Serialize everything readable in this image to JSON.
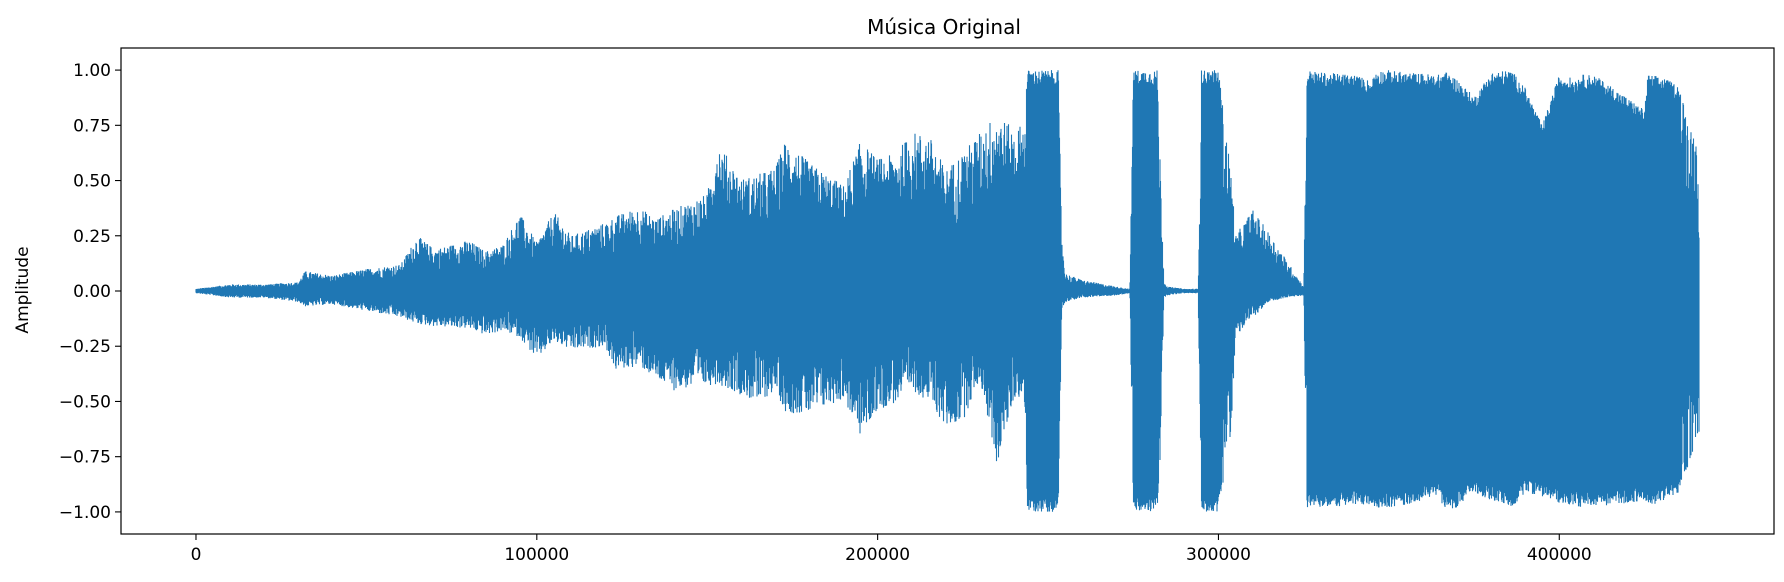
{
  "chart_data": {
    "type": "line",
    "title": "Música Original",
    "xlabel": "",
    "ylabel": "Amplitude",
    "xlim": [
      -22000,
      463000
    ],
    "ylim": [
      -1.1,
      1.1
    ],
    "x_ticks": [
      0,
      100000,
      200000,
      300000,
      400000
    ],
    "x_tick_labels": [
      "0",
      "100000",
      "200000",
      "300000",
      "400000"
    ],
    "y_ticks": [
      1.0,
      0.75,
      0.5,
      0.25,
      0.0,
      -0.25,
      -0.5,
      -0.75,
      -1.0
    ],
    "y_tick_labels": [
      "1.00",
      "0.75",
      "0.50",
      "0.25",
      "0.00",
      "−0.25",
      "−0.50",
      "−0.75",
      "−1.00"
    ],
    "grid": false,
    "legend": "none",
    "series": [
      {
        "name": "waveform",
        "color": "#1f77b4",
        "sample_count": 441000,
        "envelope": {
          "x": [
            0,
            10000,
            20000,
            30000,
            32000,
            40000,
            50000,
            60000,
            65000,
            70000,
            80000,
            85000,
            90000,
            95000,
            100000,
            105000,
            110000,
            120000,
            123000,
            130000,
            135000,
            140000,
            150000,
            153000,
            160000,
            165000,
            170000,
            173000,
            180000,
            190000,
            195000,
            200000,
            205000,
            210000,
            215000,
            220000,
            225000,
            230000,
            235000,
            240000,
            243000,
            244000,
            250000,
            253000,
            254000,
            255000,
            260000,
            270000,
            274000,
            275000,
            280000,
            282000,
            283000,
            284000,
            285000,
            290000,
            294000,
            295000,
            300000,
            304000,
            305000,
            310000,
            315000,
            320000,
            325000,
            326000,
            330000,
            340000,
            345000,
            346000,
            350000,
            355000,
            365000,
            366000,
            370000,
            375000,
            380000,
            385000,
            386000,
            390000,
            395000,
            400000,
            405000,
            406000,
            410000,
            415000,
            425000,
            426000,
            430000,
            435000,
            440000,
            441000
          ],
          "upper": [
            0.01,
            0.03,
            0.03,
            0.04,
            0.09,
            0.07,
            0.1,
            0.12,
            0.25,
            0.19,
            0.23,
            0.18,
            0.21,
            0.35,
            0.22,
            0.36,
            0.25,
            0.31,
            0.34,
            0.38,
            0.33,
            0.37,
            0.44,
            0.68,
            0.51,
            0.53,
            0.56,
            0.69,
            0.58,
            0.48,
            0.68,
            0.6,
            0.62,
            0.72,
            0.71,
            0.55,
            0.63,
            0.72,
            0.81,
            0.73,
            0.77,
            1.0,
            1.0,
            1.0,
            0.26,
            0.08,
            0.05,
            0.02,
            0.01,
            1.0,
            1.0,
            1.0,
            0.55,
            0.05,
            0.02,
            0.01,
            0.01,
            1.0,
            1.0,
            0.5,
            0.25,
            0.37,
            0.26,
            0.14,
            0.02,
            1.0,
            0.99,
            0.98,
            0.95,
            1.0,
            1.0,
            0.99,
            0.98,
            1.0,
            0.96,
            0.88,
            0.99,
            1.0,
            1.0,
            0.92,
            0.75,
            0.98,
            0.96,
            0.98,
            0.98,
            0.93,
            0.82,
            0.98,
            0.97,
            0.93,
            0.7,
            0.5
          ],
          "lower": [
            -0.01,
            -0.03,
            -0.03,
            -0.05,
            -0.07,
            -0.06,
            -0.09,
            -0.12,
            -0.15,
            -0.16,
            -0.17,
            -0.2,
            -0.18,
            -0.21,
            -0.31,
            -0.23,
            -0.27,
            -0.25,
            -0.36,
            -0.34,
            -0.4,
            -0.45,
            -0.43,
            -0.42,
            -0.47,
            -0.51,
            -0.45,
            -0.55,
            -0.56,
            -0.49,
            -0.66,
            -0.54,
            -0.51,
            -0.45,
            -0.5,
            -0.62,
            -0.59,
            -0.4,
            -0.79,
            -0.49,
            -0.47,
            -1.0,
            -1.0,
            -1.0,
            -0.1,
            -0.05,
            -0.03,
            -0.02,
            -0.01,
            -1.0,
            -1.0,
            -1.0,
            -0.75,
            -0.03,
            -0.02,
            -0.01,
            -0.01,
            -1.0,
            -1.0,
            -0.6,
            -0.21,
            -0.12,
            -0.05,
            -0.03,
            -0.02,
            -0.98,
            -0.98,
            -0.97,
            -0.97,
            -0.98,
            -0.98,
            -0.97,
            -0.92,
            -0.99,
            -0.98,
            -0.91,
            -0.95,
            -0.97,
            -0.99,
            -0.91,
            -0.93,
            -0.96,
            -0.97,
            -0.98,
            -0.97,
            -0.97,
            -0.95,
            -0.98,
            -0.95,
            -0.92,
            -0.7,
            -0.65
          ]
        }
      }
    ]
  }
}
